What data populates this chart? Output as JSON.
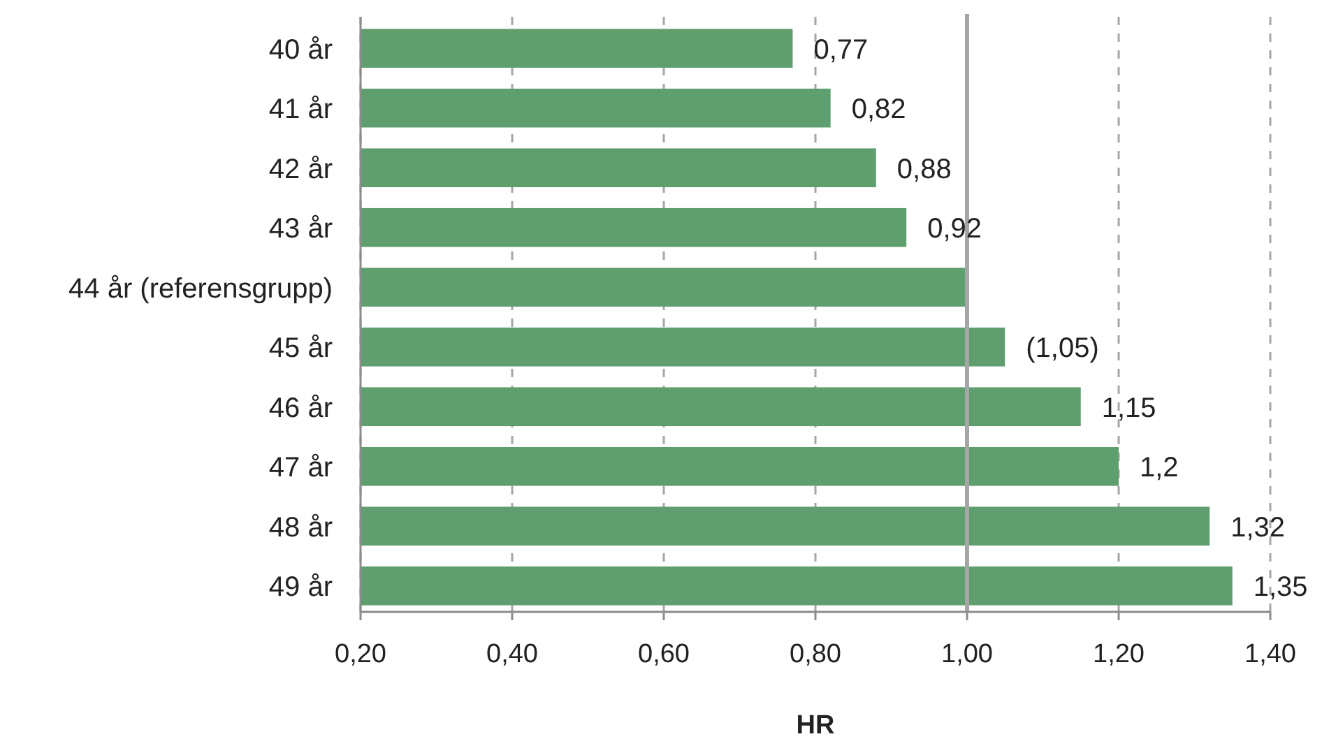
{
  "chart_data": {
    "type": "bar",
    "orientation": "horizontal",
    "xlabel": "HR",
    "categories": [
      "40 år",
      "41 år",
      "42 år",
      "43 år",
      "44 år (referensgrupp)",
      "45 år",
      "46 år",
      "47 år",
      "48 år",
      "49 år"
    ],
    "values": [
      0.77,
      0.82,
      0.88,
      0.92,
      1.0,
      1.05,
      1.15,
      1.2,
      1.32,
      1.35
    ],
    "value_labels": [
      "0,77",
      "0,82",
      "0,88",
      "0,92",
      null,
      "(1,05)",
      "1,15",
      "1,2",
      "1,32",
      "1,35"
    ],
    "color": "#5f9e6e",
    "xlim": [
      0.2,
      1.4
    ],
    "xticks": [
      {
        "value": 0.2,
        "label": "0,20"
      },
      {
        "value": 0.4,
        "label": "0,40"
      },
      {
        "value": 0.6,
        "label": "0,60"
      },
      {
        "value": 0.8,
        "label": "0,80"
      },
      {
        "value": 1.0,
        "label": "1,00"
      },
      {
        "value": 1.2,
        "label": "1,20"
      },
      {
        "value": 1.4,
        "label": "1,40"
      }
    ],
    "grid": "x",
    "ref_lines": [
      {
        "axis": "x",
        "value": 1.0,
        "color": "#a6a6a6"
      }
    ]
  }
}
